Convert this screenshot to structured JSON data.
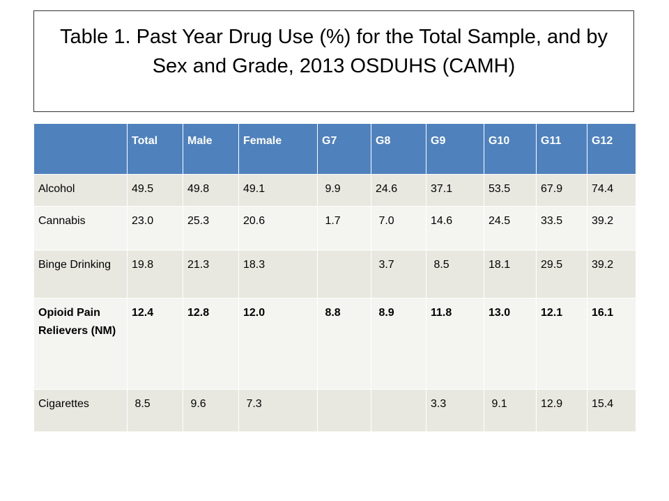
{
  "title": "Table 1. Past Year Drug Use (%) for the Total Sample, and by Sex and Grade, 2013 OSDUHS (CAMH)",
  "table": {
    "columns": [
      null,
      "Total",
      "Male",
      "Female",
      "G7",
      "G8",
      "G9",
      "G10",
      "G11",
      "G12"
    ],
    "rows": [
      [
        "Alcohol",
        "49.5",
        "49.8",
        "49.1",
        " 9.9",
        "24.6",
        "37.1",
        "53.5",
        "67.9",
        "74.4"
      ],
      [
        "Cannabis",
        "23.0",
        "25.3",
        "20.6",
        " 1.7",
        " 7.0",
        "14.6",
        "24.5",
        "33.5",
        "39.2"
      ],
      [
        "Binge Drinking",
        "19.8",
        "21.3",
        "18.3",
        null,
        " 3.7",
        " 8.5",
        "18.1",
        "29.5",
        "39.2"
      ],
      [
        "Opioid Pain Relievers (NM)",
        "12.4",
        "12.8",
        "12.0",
        " 8.8",
        " 8.9",
        "11.8",
        "13.0",
        "12.1",
        "16.1"
      ],
      [
        "Cigarettes",
        " 8.5",
        " 9.6",
        " 7.3",
        null,
        null,
        "3.3",
        " 9.1",
        "12.9",
        "15.4"
      ]
    ]
  }
}
